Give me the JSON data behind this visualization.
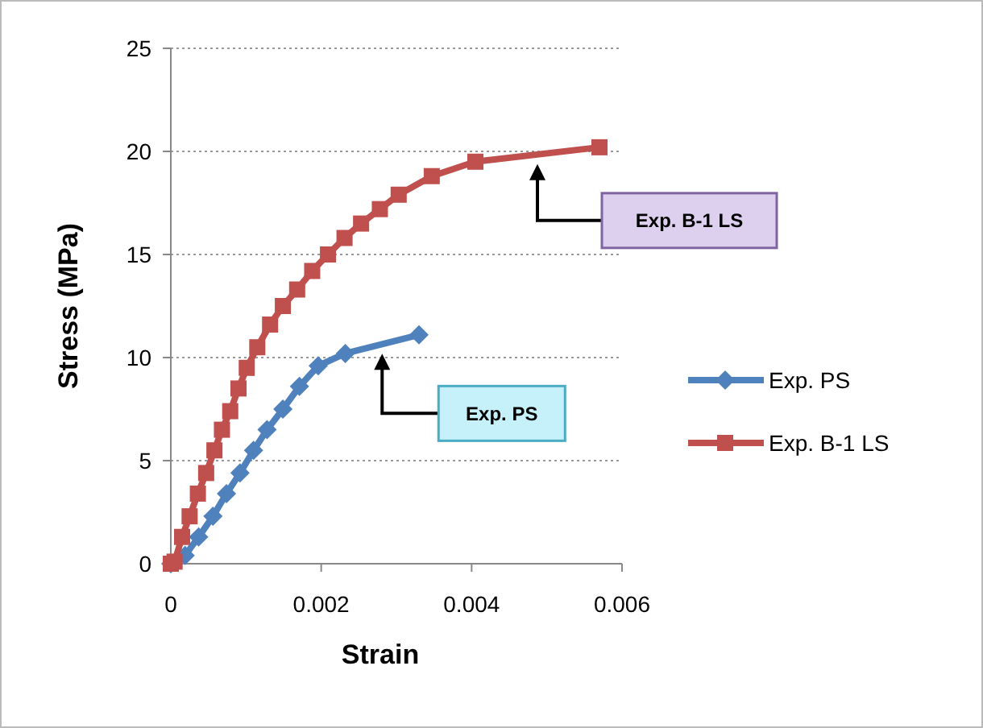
{
  "chart_data": {
    "type": "line",
    "xlabel": "Strain",
    "ylabel": "Stress (MPa)",
    "xlim": [
      0,
      0.006
    ],
    "xticks": [
      0,
      0.002,
      0.004,
      0.006
    ],
    "ylim": [
      0,
      25
    ],
    "yticks": [
      0,
      5,
      10,
      15,
      20,
      25
    ],
    "grid": "y",
    "legend": "right",
    "series": [
      {
        "name": "Exp. PS",
        "color": "#4f81bd",
        "marker": "diamond",
        "x": [
          0,
          0.00019,
          0.00037,
          0.00056,
          0.00074,
          0.00092,
          0.0011,
          0.00128,
          0.00149,
          0.00171,
          0.00196,
          0.00232,
          0.0033
        ],
        "values": [
          0,
          0.4,
          1.3,
          2.3,
          3.4,
          4.4,
          5.5,
          6.5,
          7.5,
          8.6,
          9.6,
          10.2,
          11.1
        ]
      },
      {
        "name": "Exp. B-1 LS",
        "color": "#c0504d",
        "marker": "square",
        "x": [
          0,
          5e-05,
          0.00015,
          0.00025,
          0.00036,
          0.00047,
          0.00058,
          0.00068,
          0.00079,
          0.0009,
          0.00101,
          0.00115,
          0.00132,
          0.00149,
          0.00168,
          0.00188,
          0.00209,
          0.00231,
          0.00253,
          0.00278,
          0.00303,
          0.00347,
          0.00405,
          0.0057
        ],
        "values": [
          0,
          0.1,
          1.3,
          2.3,
          3.4,
          4.4,
          5.5,
          6.5,
          7.4,
          8.5,
          9.5,
          10.5,
          11.6,
          12.5,
          13.3,
          14.2,
          15.0,
          15.8,
          16.5,
          17.2,
          17.9,
          18.8,
          19.5,
          20.2
        ]
      }
    ],
    "annotations": [
      "Exp. PS",
      "Exp. B-1 LS"
    ]
  }
}
